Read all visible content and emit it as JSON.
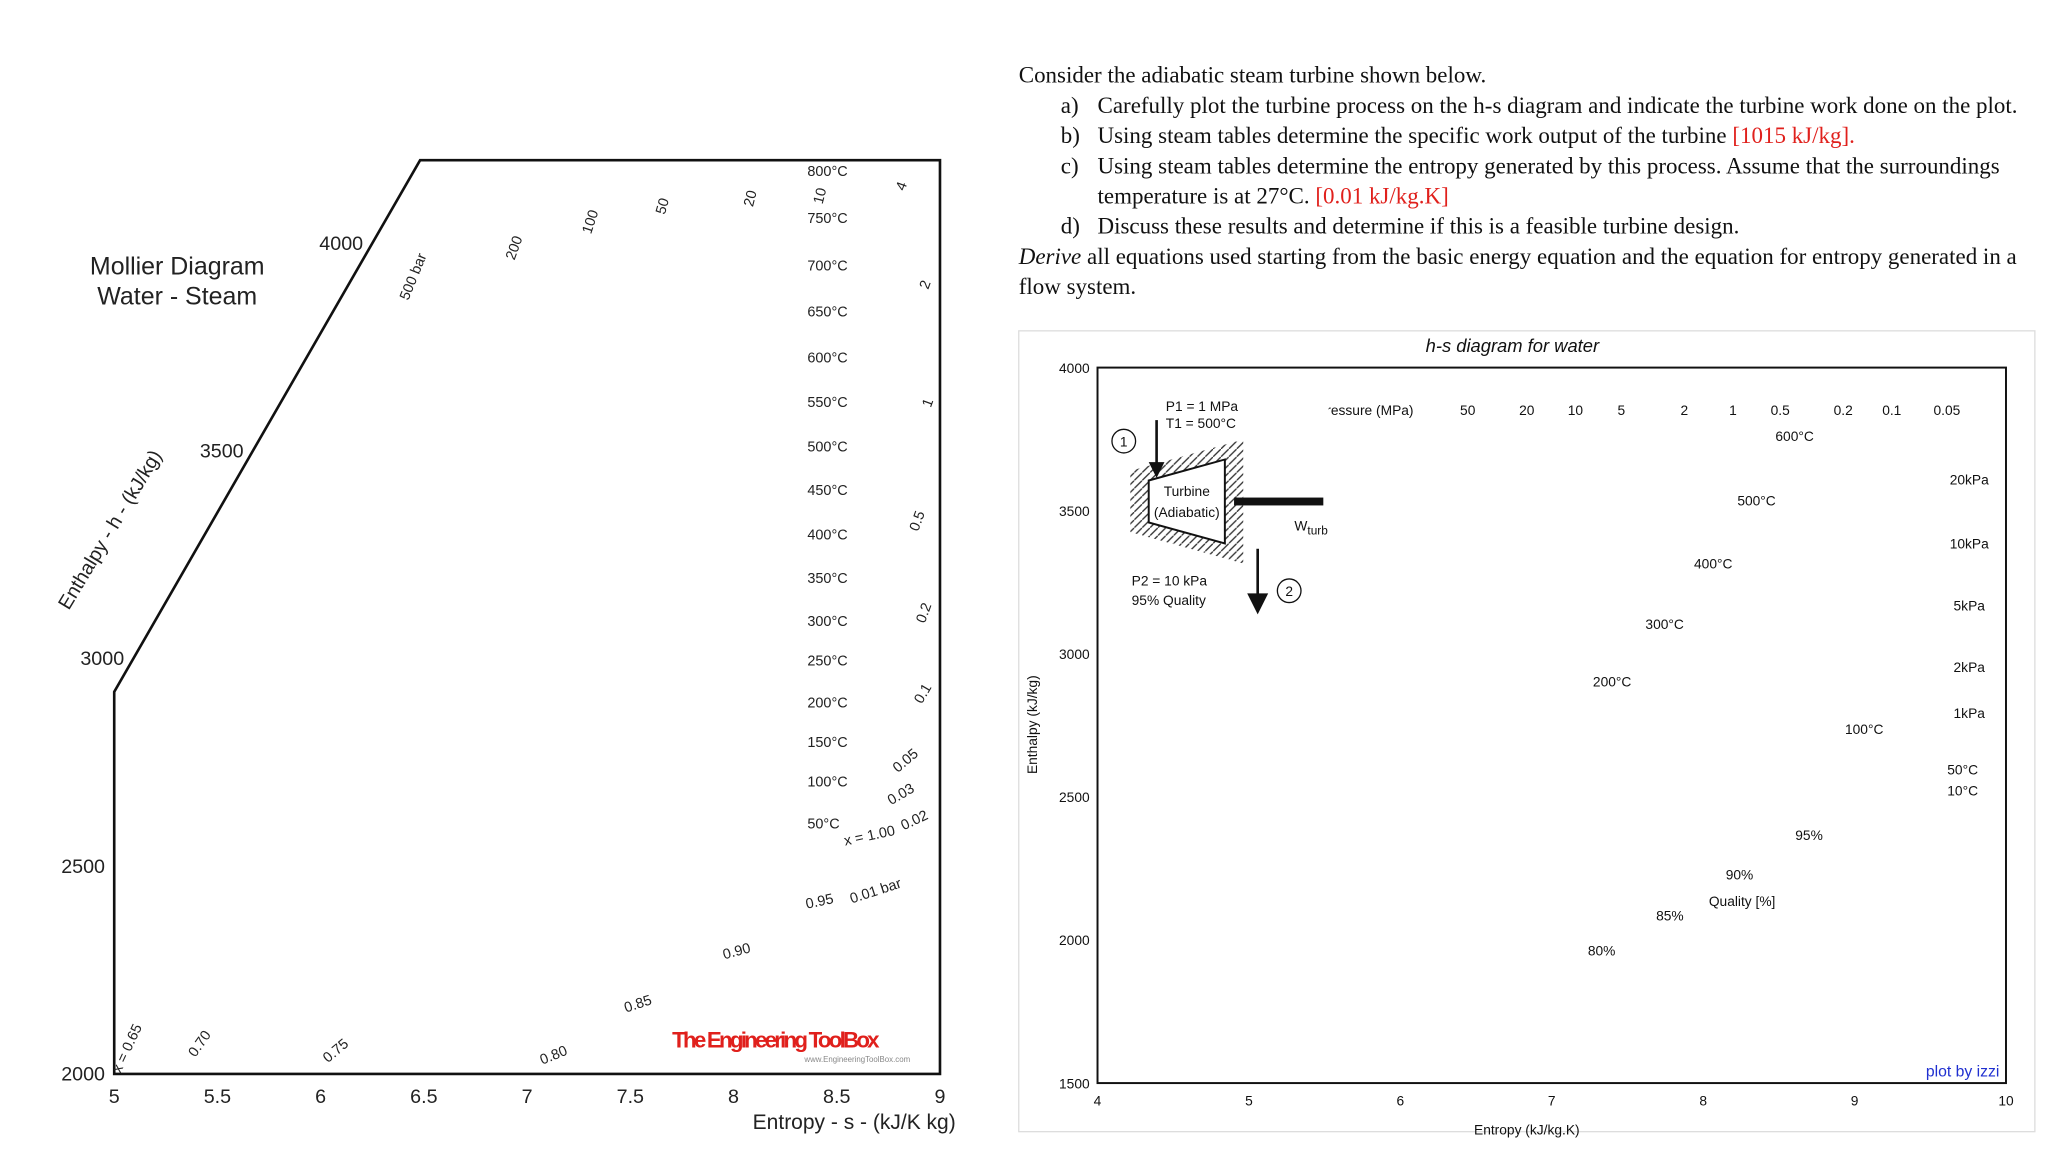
{
  "problem": {
    "intro": "Consider the adiabatic steam turbine shown below.",
    "items": [
      {
        "label": "a)",
        "text": "Carefully plot the turbine process on the h-s diagram and indicate the turbine work done on the plot."
      },
      {
        "label": "b)",
        "text": "Using steam tables determine the specific work output of the turbine",
        "answer": "[1015 kJ/kg]."
      },
      {
        "label": "c)",
        "text": "Using steam tables determine the entropy generated by this process. Assume that the surroundings temperature is at 27°C.",
        "answer": "[0.01 kJ/kg.K]"
      },
      {
        "label": "d)",
        "text": "Discuss these results and determine if this is a feasible turbine design."
      }
    ],
    "derive_word": "Derive",
    "derive_text": "all equations used starting from the basic energy equation and the equation for entropy generated in a flow system."
  },
  "left_chart": {
    "title": [
      "Mollier Diagram",
      "Water - Steam"
    ],
    "ylabel": "Enthalpy - h - (kJ/kg)",
    "xlabel": "Entropy - s - (kJ/K kg)",
    "xlim": [
      5,
      9
    ],
    "xticks": [
      5,
      5.5,
      6,
      6.5,
      7,
      7.5,
      8,
      8.5,
      9
    ],
    "ylim": [
      2000,
      4200
    ],
    "yticks": [
      2000,
      2500,
      3000,
      3500,
      4000
    ],
    "isotherms": [
      "800°C",
      "750°C",
      "700°C",
      "650°C",
      "600°C",
      "550°C",
      "500°C",
      "450°C",
      "400°C",
      "350°C",
      "300°C",
      "250°C",
      "200°C",
      "150°C",
      "100°C",
      "50°C"
    ],
    "pressures": [
      "500 bar",
      "200",
      "100",
      "50",
      "20",
      "10",
      "4",
      "2",
      "1",
      "0.5",
      "0.2",
      "0.1",
      "0.05",
      "0.03",
      "0.02",
      "0.01 bar"
    ],
    "qualities": [
      "x = 1.00",
      "0.95",
      "0.90",
      "0.85",
      "0.80",
      "0.75",
      "0.70",
      "x = 0.65"
    ],
    "brand": "The Engineering ToolBox",
    "brand_url": "www.EngineeringToolBox.com"
  },
  "right_chart": {
    "title": "h-s diagram for water",
    "ylabel": "Enthalpy (kJ/kg)",
    "xlabel": "Entropy (kJ/kg.K)",
    "xlim": [
      4,
      10
    ],
    "xticks": [
      4,
      5,
      6,
      7,
      8,
      9,
      10
    ],
    "ylim": [
      1500,
      4000
    ],
    "yticks": [
      1500,
      2000,
      2500,
      3000,
      3500,
      4000
    ],
    "pressure_title": "Pressure (MPa)",
    "pressures": [
      "50",
      "20",
      "10",
      "5",
      "2",
      "1",
      "0.5",
      "0.2",
      "0.1",
      "0.05"
    ],
    "isotherms": [
      "600°C",
      "500°C",
      "400°C",
      "300°C",
      "200°C",
      "100°C",
      "50°C",
      "10°C"
    ],
    "low_pressures": [
      "20kPa",
      "10kPa",
      "5kPa",
      "2kPa",
      "1kPa"
    ],
    "qualities": [
      "95%",
      "90%",
      "85%",
      "80%"
    ],
    "quality_title": "Quality [%]",
    "credit": "plot by izzi",
    "turbine": {
      "inlet": [
        "P1 = 1 MPa",
        "T1 = 500°C"
      ],
      "label": [
        "Turbine",
        "(Adiabatic)"
      ],
      "work": "W",
      "work_sub": "turb",
      "outlet": [
        "P2 = 10 kPa",
        "95% Quality"
      ],
      "states": [
        "1",
        "2"
      ]
    }
  }
}
